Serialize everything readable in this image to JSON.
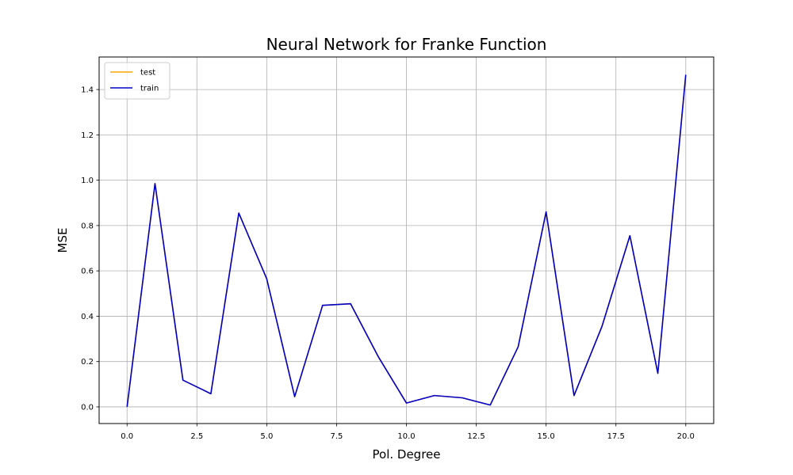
{
  "chart_data": {
    "type": "line",
    "title": "Neural Network for Franke Function",
    "xlabel": "Pol. Degree",
    "ylabel": "MSE",
    "xlim": [
      -1.0,
      21.0
    ],
    "ylim": [
      -0.0735,
      1.5435
    ],
    "xticks": [
      0.0,
      2.5,
      5.0,
      7.5,
      10.0,
      12.5,
      15.0,
      17.5,
      20.0
    ],
    "xtick_labels": [
      "0.0",
      "2.5",
      "5.0",
      "7.5",
      "10.0",
      "12.5",
      "15.0",
      "17.5",
      "20.0"
    ],
    "yticks": [
      0.0,
      0.2,
      0.4,
      0.6,
      0.8,
      1.0,
      1.2,
      1.4
    ],
    "ytick_labels": [
      "0.0",
      "0.2",
      "0.4",
      "0.6",
      "0.8",
      "1.0",
      "1.2",
      "1.4"
    ],
    "grid": true,
    "legend_position": "top-left",
    "x": [
      0,
      1,
      2,
      3,
      4,
      5,
      6,
      7,
      8,
      9,
      10,
      11,
      12,
      13,
      14,
      15,
      16,
      17,
      18,
      19,
      20
    ],
    "series": [
      {
        "name": "test",
        "color": "#ffa500",
        "values": [
          0.0,
          0.985,
          0.118,
          0.058,
          0.855,
          0.565,
          0.045,
          0.448,
          0.455,
          0.22,
          0.017,
          0.05,
          0.04,
          0.008,
          0.265,
          0.86,
          0.05,
          0.355,
          0.755,
          0.148,
          1.465
        ]
      },
      {
        "name": "train",
        "color": "#0000cd",
        "values": [
          0.0,
          0.985,
          0.118,
          0.058,
          0.855,
          0.565,
          0.045,
          0.448,
          0.455,
          0.22,
          0.017,
          0.05,
          0.04,
          0.008,
          0.265,
          0.86,
          0.05,
          0.355,
          0.755,
          0.148,
          1.465
        ]
      }
    ]
  }
}
